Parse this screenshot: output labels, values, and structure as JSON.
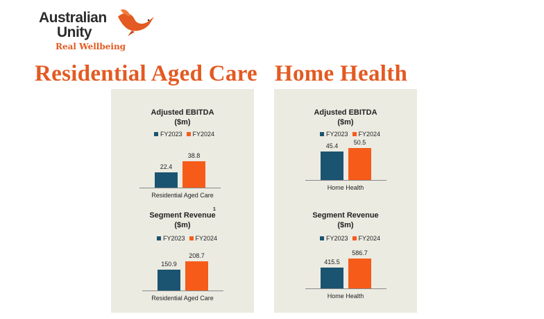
{
  "logo": {
    "line1": "Australian",
    "line2": "Unity",
    "tagline": "Real Wellbeing"
  },
  "colors": {
    "accent": "#e35a22",
    "fy2023": "#1b5470",
    "fy2024": "#f65b1a",
    "panel_bg": "#ecebe2"
  },
  "sections": [
    {
      "title": "Residential Aged Care"
    },
    {
      "title": "Home Health"
    }
  ],
  "chart_data": [
    {
      "type": "bar",
      "title": "Adjusted EBITDA ($m)",
      "title_lines": [
        "Adjusted EBITDA",
        "($m)"
      ],
      "footnote": "",
      "categories": [
        "Residential Aged Care"
      ],
      "series": [
        {
          "name": "FY2023",
          "values": [
            22.4
          ]
        },
        {
          "name": "FY2024",
          "values": [
            38.8
          ]
        }
      ],
      "value_labels": [
        "22.4",
        "38.8"
      ],
      "legend": "top"
    },
    {
      "type": "bar",
      "title": "Segment Revenue ($m)",
      "title_lines": [
        "Segment Revenue",
        "($m)"
      ],
      "footnote": "1",
      "categories": [
        "Residential Aged Care"
      ],
      "series": [
        {
          "name": "FY2023",
          "values": [
            150.9
          ]
        },
        {
          "name": "FY2024",
          "values": [
            208.7
          ]
        }
      ],
      "value_labels": [
        "150.9",
        "208.7"
      ],
      "legend": "top"
    },
    {
      "type": "bar",
      "title": "Adjusted EBITDA ($m)",
      "title_lines": [
        "Adjusted EBITDA",
        "($m)"
      ],
      "footnote": "",
      "categories": [
        "Home Health"
      ],
      "series": [
        {
          "name": "FY2023",
          "values": [
            45.4
          ]
        },
        {
          "name": "FY2024",
          "values": [
            50.5
          ]
        }
      ],
      "value_labels": [
        "45.4",
        "50.5"
      ],
      "legend": "top"
    },
    {
      "type": "bar",
      "title": "Segment Revenue ($m)",
      "title_lines": [
        "Segment Revenue",
        "($m)"
      ],
      "footnote": "",
      "categories": [
        "Home Health"
      ],
      "series": [
        {
          "name": "FY2023",
          "values": [
            415.5
          ]
        },
        {
          "name": "FY2024",
          "values": [
            586.7
          ]
        }
      ],
      "value_labels": [
        "415.5",
        "586.7"
      ],
      "legend": "top"
    }
  ]
}
